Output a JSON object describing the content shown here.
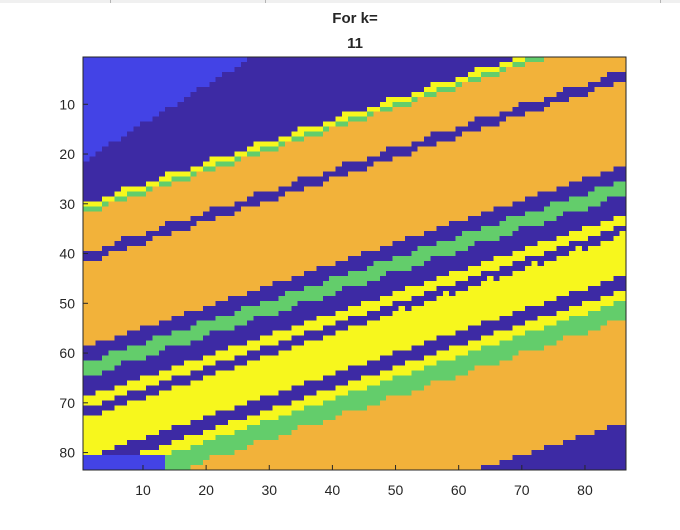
{
  "chart_data": {
    "type": "heatmap",
    "title_lines": [
      "For k=",
      "11"
    ],
    "xlabel": "",
    "ylabel": "",
    "xlim": [
      0.5,
      86.5
    ],
    "ylim": [
      0.5,
      83.5
    ],
    "y_reversed": true,
    "grid": false,
    "n_cols": 86,
    "n_rows": 83,
    "x_ticks": [
      10,
      20,
      30,
      40,
      50,
      60,
      70,
      80
    ],
    "y_ticks": [
      10,
      20,
      30,
      40,
      50,
      60,
      70,
      80
    ],
    "x_tick_labels": [
      "10",
      "20",
      "30",
      "40",
      "50",
      "60",
      "70",
      "80"
    ],
    "y_tick_labels": [
      "10",
      "20",
      "30",
      "40",
      "50",
      "60",
      "70",
      "80"
    ],
    "class_colors": {
      "blue": "#4343e6",
      "navy": "#3d2aa4",
      "orange": "#f2b23a",
      "green": "#63cd6b",
      "yellow": "#f7f71d"
    },
    "clusters": 11,
    "band_slope_rows_per_col": -0.43,
    "regions": [
      {
        "class": "blue",
        "description_coords": "top-left corner, rows 1-21 at col 1 tapering to col 27 at row 1"
      },
      {
        "class": "navy",
        "rows_at_col1": [
          22,
          29
        ]
      },
      {
        "class": "yellow",
        "rows_at_col1": [
          30,
          30
        ]
      },
      {
        "class": "green",
        "rows_at_col1": [
          31,
          31
        ]
      },
      {
        "class": "orange",
        "rows_at_col1": [
          32,
          39
        ]
      },
      {
        "class": "navy",
        "rows_at_col1": [
          40,
          41
        ]
      },
      {
        "class": "orange",
        "rows_at_col1": [
          42,
          58
        ]
      },
      {
        "class": "navy",
        "rows_at_col1": [
          59,
          61
        ]
      },
      {
        "class": "green",
        "rows_at_col1": [
          62,
          64
        ]
      },
      {
        "class": "navy",
        "rows_at_col1": [
          65,
          68
        ]
      },
      {
        "class": "yellow",
        "rows_at_col1": [
          69,
          70
        ]
      },
      {
        "class": "navy",
        "rows_at_col1": [
          71,
          72
        ]
      },
      {
        "class": "yellow",
        "rows_at_col1": [
          73,
          80
        ]
      },
      {
        "class": "blue",
        "description_coords": "bottom-left patch, rows 81-83, cols 1-13"
      },
      {
        "class": "navy",
        "description_coords": "bottom-right wedge, rows 75-83, cols 64-86"
      }
    ]
  }
}
